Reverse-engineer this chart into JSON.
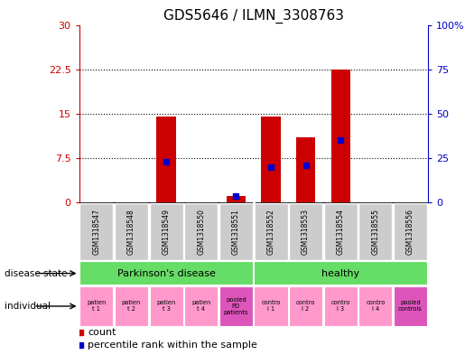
{
  "title": "GDS5646 / ILMN_3308763",
  "samples": [
    "GSM1318547",
    "GSM1318548",
    "GSM1318549",
    "GSM1318550",
    "GSM1318551",
    "GSM1318552",
    "GSM1318553",
    "GSM1318554",
    "GSM1318555",
    "GSM1318556"
  ],
  "counts": [
    0,
    0,
    14.5,
    0,
    1.0,
    14.5,
    11.0,
    22.5,
    0,
    0
  ],
  "percentile_ranks_pct": [
    null,
    null,
    23.0,
    null,
    3.5,
    20.0,
    21.0,
    35.0,
    null,
    null
  ],
  "ylim_left": [
    0,
    30
  ],
  "yticks_left": [
    0,
    7.5,
    15,
    22.5,
    30
  ],
  "ytick_labels_left": [
    "0",
    "7.5",
    "15",
    "22.5",
    "30"
  ],
  "ytick_labels_right": [
    "0",
    "25",
    "50",
    "75",
    "100%"
  ],
  "bar_color": "#cc0000",
  "dot_color": "#0000cc",
  "sample_bg_color": "#cccccc",
  "pd_color": "#66dd66",
  "healthy_color": "#66dd66",
  "individual_labels": [
    "patien\nt 1",
    "patien\nt 2",
    "patien\nt 3",
    "patien\nt 4",
    "pooled\nPD\npatients",
    "contro\nl 1",
    "contro\nl 2",
    "contro\nl 3",
    "contro\nl 4",
    "pooled\ncontrols"
  ],
  "individual_colors": [
    "#ff99cc",
    "#ff99cc",
    "#ff99cc",
    "#ff99cc",
    "#dd55bb",
    "#ff99cc",
    "#ff99cc",
    "#ff99cc",
    "#ff99cc",
    "#dd55bb"
  ]
}
